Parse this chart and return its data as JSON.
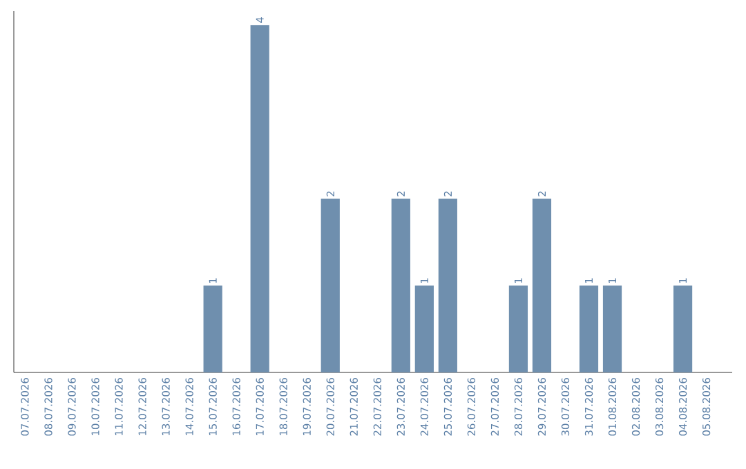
{
  "chart_data": {
    "type": "bar",
    "categories": [
      "07.07.2026",
      "08.07.2026",
      "09.07.2026",
      "10.07.2026",
      "11.07.2026",
      "12.07.2026",
      "13.07.2026",
      "14.07.2026",
      "15.07.2026",
      "16.07.2026",
      "17.07.2026",
      "18.07.2026",
      "19.07.2026",
      "20.07.2026",
      "21.07.2026",
      "22.07.2026",
      "23.07.2026",
      "24.07.2026",
      "25.07.2026",
      "26.07.2026",
      "27.07.2026",
      "28.07.2026",
      "29.07.2026",
      "30.07.2026",
      "31.07.2026",
      "01.08.2026",
      "02.08.2026",
      "03.08.2026",
      "04.08.2026",
      "05.08.2026"
    ],
    "values": [
      0,
      0,
      0,
      0,
      0,
      0,
      0,
      0,
      1,
      0,
      4,
      0,
      0,
      2,
      0,
      0,
      2,
      1,
      2,
      0,
      0,
      1,
      2,
      0,
      1,
      1,
      0,
      0,
      1,
      0
    ],
    "value_labels": [
      null,
      null,
      null,
      null,
      null,
      null,
      null,
      null,
      "1",
      null,
      "4",
      null,
      null,
      "2",
      null,
      null,
      "2",
      "1",
      "2",
      null,
      null,
      "1",
      "2",
      null,
      "1",
      "1",
      null,
      null,
      "1",
      null
    ],
    "color": "#6f8fae"
  }
}
